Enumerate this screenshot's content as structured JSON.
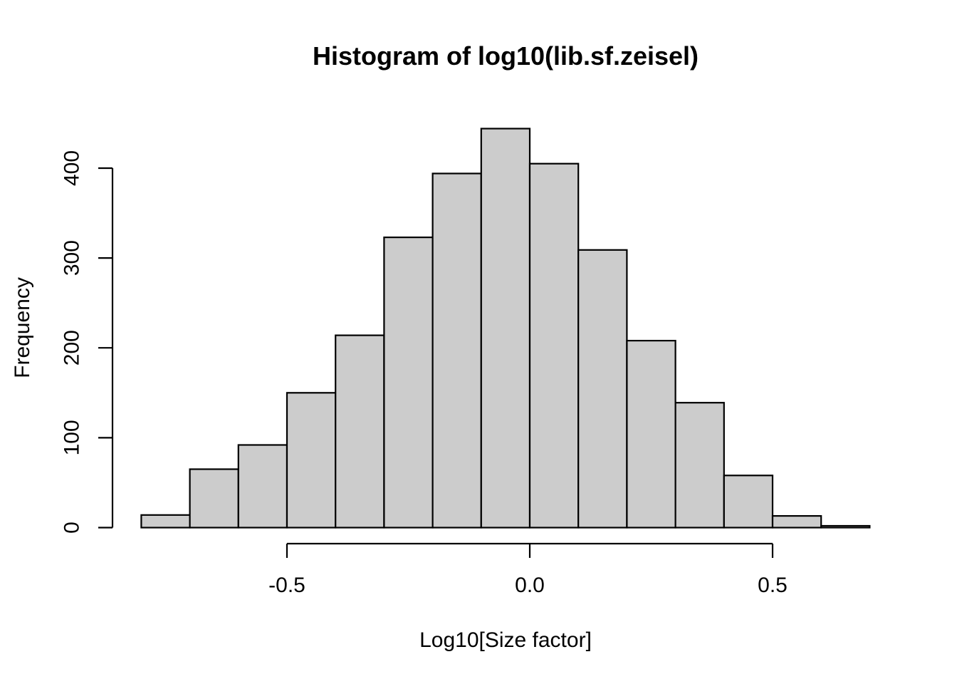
{
  "chart_data": {
    "type": "bar",
    "subtype": "histogram",
    "title": "Histogram of log10(lib.sf.zeisel)",
    "xlabel": "Log10[Size factor]",
    "ylabel": "Frequency",
    "bin_start": -0.8,
    "bin_width": 0.1,
    "bin_edges": [
      -0.8,
      -0.7,
      -0.6,
      -0.5,
      -0.4,
      -0.3,
      -0.2,
      -0.1,
      0.0,
      0.1,
      0.2,
      0.3,
      0.4,
      0.5,
      0.6,
      0.7
    ],
    "counts": [
      14,
      65,
      92,
      150,
      214,
      323,
      394,
      444,
      405,
      309,
      208,
      139,
      58,
      13,
      2
    ],
    "xlim": [
      -0.8,
      0.7
    ],
    "ylim": [
      0,
      444
    ],
    "x_ticks": [
      -0.5,
      0.0,
      0.5
    ],
    "x_tick_labels": [
      "-0.5",
      "0.0",
      "0.5"
    ],
    "y_ticks": [
      0,
      100,
      200,
      300,
      400
    ],
    "y_tick_labels": [
      "0",
      "100",
      "200",
      "300",
      "400"
    ],
    "grid": "off",
    "legend": "none",
    "bar_fill": "#CCCCCC",
    "bar_stroke": "#000000",
    "axis_color": "#000000",
    "background": "#FFFFFF"
  }
}
